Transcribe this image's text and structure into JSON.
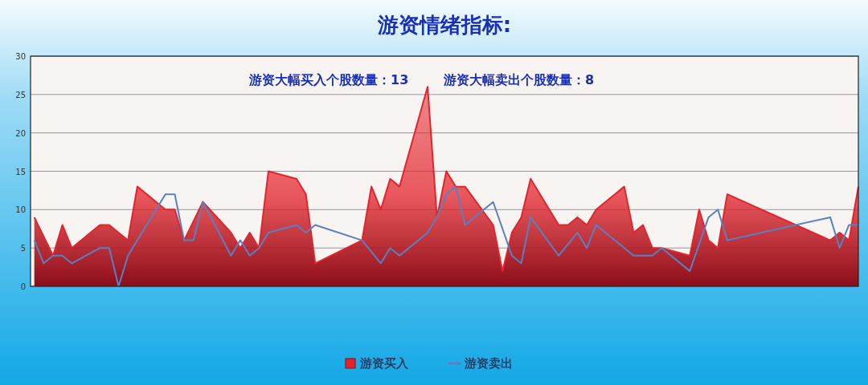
{
  "chart_data": {
    "type": "area",
    "title": "游资情绪指标:",
    "annotations": [
      "游资大幅买入个股数量：13",
      "游资大幅卖出个股数量：8"
    ],
    "categories": [
      null,
      null,
      null,
      null,
      null,
      null,
      null,
      null,
      null,
      null,
      null,
      null,
      null,
      null,
      null,
      null,
      null,
      null,
      null,
      null,
      null,
      null,
      null,
      null,
      null,
      null,
      null,
      null,
      null,
      null,
      null,
      null,
      null,
      null,
      null,
      null,
      null,
      null,
      null,
      null,
      null,
      null,
      null,
      null,
      null,
      null,
      null,
      null,
      null,
      null,
      null,
      null,
      null,
      null,
      null,
      null,
      null,
      null,
      null,
      null,
      null,
      null,
      null,
      null,
      null,
      null,
      null,
      null,
      null,
      null,
      null,
      null,
      null,
      null,
      null,
      null,
      null,
      null,
      null,
      null,
      null,
      null,
      null,
      null,
      null,
      null,
      null,
      null,
      null
    ],
    "series": [
      {
        "name": "游资买入",
        "type": "area",
        "color": "#e4242c",
        "values": [
          9,
          null,
          4,
          8,
          5,
          null,
          null,
          8,
          8,
          null,
          6,
          13,
          null,
          null,
          10,
          10,
          6,
          null,
          11,
          null,
          null,
          7,
          5,
          7,
          5,
          15,
          null,
          null,
          14,
          12,
          3,
          null,
          null,
          null,
          null,
          6,
          13,
          10,
          14,
          13,
          null,
          null,
          26,
          9,
          15,
          13,
          13,
          null,
          null,
          8,
          2,
          7,
          9,
          14,
          null,
          null,
          8,
          8,
          9,
          8,
          10,
          null,
          null,
          13,
          7,
          8,
          5,
          5,
          null,
          null,
          4,
          10,
          6,
          5,
          12,
          null,
          null,
          null,
          null,
          null,
          null,
          null,
          null,
          null,
          null,
          6,
          7,
          6,
          13
        ]
      },
      {
        "name": "游资卖出",
        "type": "line",
        "color": "#5a80c4",
        "values": [
          6,
          3,
          4,
          4,
          3,
          null,
          null,
          5,
          5,
          0,
          4,
          null,
          null,
          null,
          12,
          12,
          6,
          6,
          11,
          null,
          null,
          4,
          6,
          4,
          5,
          7,
          null,
          null,
          8,
          7,
          8,
          null,
          null,
          null,
          null,
          6,
          null,
          3,
          5,
          4,
          null,
          null,
          7,
          9,
          12,
          13,
          8,
          null,
          null,
          11,
          null,
          4,
          3,
          9,
          null,
          null,
          4,
          null,
          7,
          5,
          8,
          null,
          null,
          null,
          4,
          null,
          4,
          5,
          null,
          null,
          2,
          null,
          9,
          10,
          6,
          null,
          null,
          null,
          null,
          null,
          null,
          null,
          null,
          null,
          null,
          9,
          5,
          8,
          8
        ]
      }
    ],
    "ylim": [
      0,
      30
    ],
    "yticks": [
      0,
      5,
      10,
      15,
      20,
      25,
      30
    ],
    "grid": "y",
    "legend": "bottom",
    "tick_labels": "y"
  }
}
